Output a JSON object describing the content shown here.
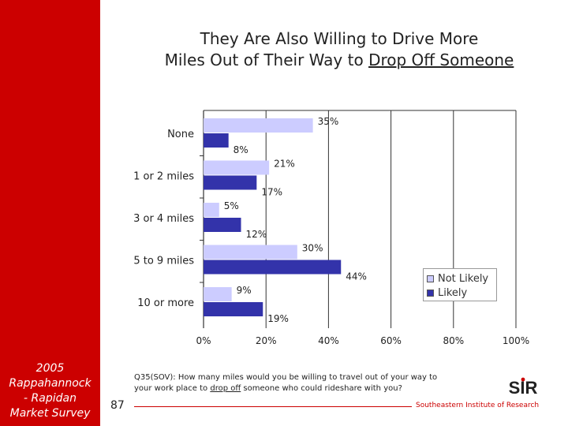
{
  "sidebar": {
    "caption": "2005\nRappahannock\n- Rapidan\nMarket Survey",
    "color": "#cc0000"
  },
  "slide": {
    "title_line1": "They Are Also Willing to Drive More",
    "title_line2_pre": "Miles Out of Their Way to ",
    "title_line2_underlined": "Drop Off Someone",
    "footnote_line1": "Q35(SOV): How many miles would you be willing to travel out of your way to",
    "footnote_line2_pre": "your work place to ",
    "footnote_line2_underlined": "drop off",
    "footnote_line2_post": " someone who could rideshare with you?",
    "page_number": "87",
    "organization": "Southeastern Institute of Research",
    "logo_text": "SIR"
  },
  "chart_data": {
    "type": "bar",
    "orientation": "horizontal",
    "categories": [
      "None",
      "1 or 2 miles",
      "3 or 4 miles",
      "5 to 9 miles",
      "10 or more"
    ],
    "series": [
      {
        "name": "Not Likely",
        "values": [
          35,
          21,
          5,
          30,
          9
        ],
        "labels": [
          "35%",
          "21%",
          "5%",
          "30%",
          "9%"
        ],
        "color": "#ccccff"
      },
      {
        "name": "Likely",
        "values": [
          8,
          17,
          12,
          44,
          19
        ],
        "labels": [
          "8%",
          "17%",
          "12%",
          "44%",
          "19%"
        ],
        "color": "#3333aa"
      }
    ],
    "xlim": [
      0,
      100
    ],
    "xticks": [
      0,
      20,
      40,
      60,
      80,
      100
    ],
    "xtick_labels": [
      "0%",
      "20%",
      "40%",
      "60%",
      "80%",
      "100%"
    ],
    "grid": true,
    "legend_position": "right"
  }
}
